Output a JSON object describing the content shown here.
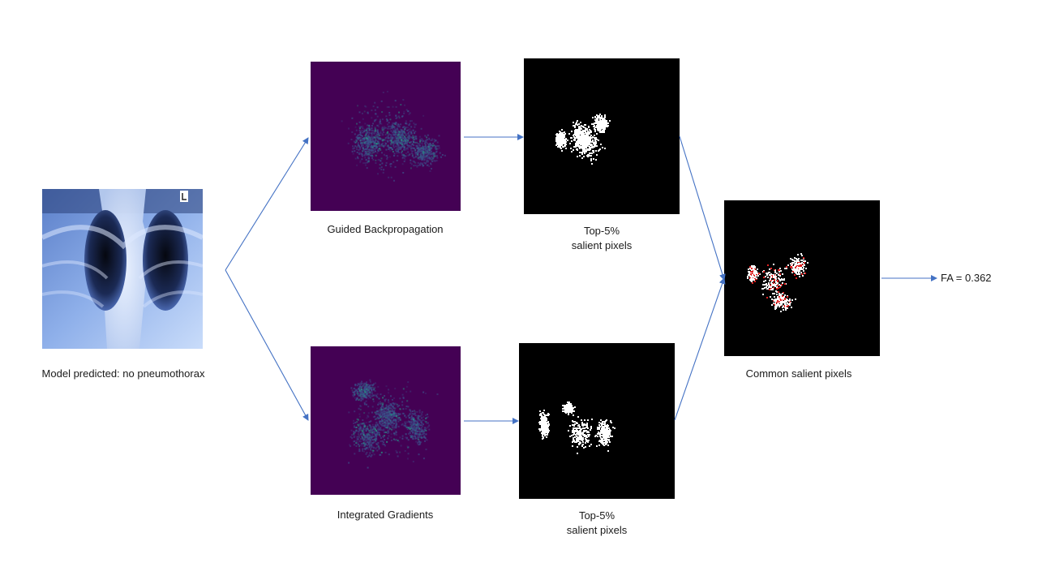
{
  "input": {
    "caption": "Model predicted: no pneumothorax"
  },
  "guided_backprop": {
    "caption": "Guided Backpropagation",
    "mask_caption_line1": "Top-5%",
    "mask_caption_line2": "salient pixels"
  },
  "integrated_gradients": {
    "caption": "Integrated Gradients",
    "mask_caption_line1": "Top-5%",
    "mask_caption_line2": "salient pixels"
  },
  "common": {
    "caption": "Common  salient pixels"
  },
  "result": {
    "label": "FA = 0.362"
  },
  "colors": {
    "arrow": "#4472c4",
    "viridis_bg": "#440154",
    "viridis_mid": "#3b528b",
    "viridis_hot": "#21a585",
    "mask_bg": "#000000",
    "mask_px": "#ffffff",
    "common_px": "#e02020"
  }
}
